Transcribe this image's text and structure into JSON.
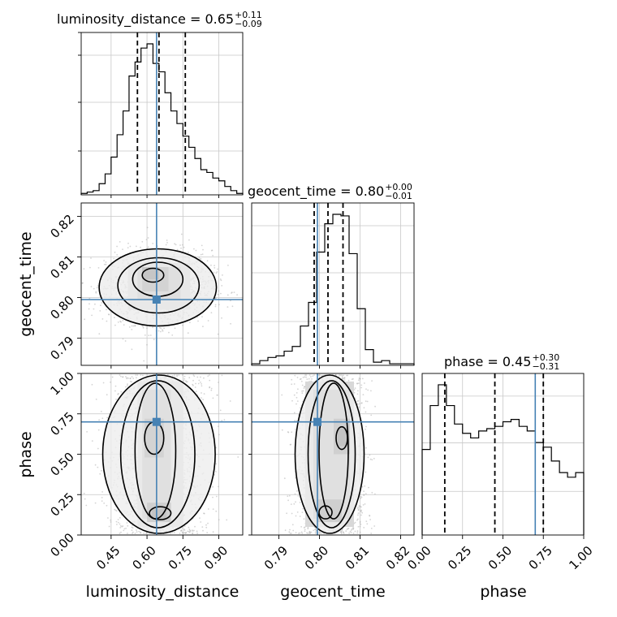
{
  "chart_data": {
    "type": "corner",
    "title": "",
    "parameters": [
      "luminosity_distance",
      "geocent_time",
      "phase"
    ],
    "truths": {
      "luminosity_distance": 0.64,
      "geocent_time": 0.7995,
      "phase": 0.7
    },
    "truth_color": "#4682b4",
    "titles": [
      {
        "param": "luminosity_distance",
        "median": "0.65",
        "plus": "+0.11",
        "minus": "−0.09"
      },
      {
        "param": "geocent_time",
        "median": "0.80",
        "plus": "+0.00",
        "minus": "−0.01"
      },
      {
        "param": "phase",
        "median": "0.45",
        "plus": "+0.30",
        "minus": "−0.31"
      }
    ],
    "axis_ranges": {
      "luminosity_distance": [
        0.325,
        1.0
      ],
      "geocent_time": [
        0.7833,
        0.8233
      ],
      "phase": [
        0.0,
        1.0
      ]
    },
    "ticks": {
      "luminosity_distance": [
        "0.45",
        "0.60",
        "0.75",
        "0.90"
      ],
      "geocent_time": [
        "0.79",
        "0.80",
        "0.81",
        "0.82"
      ],
      "phase": [
        "0.00",
        "0.25",
        "0.50",
        "0.75",
        "1.00"
      ]
    },
    "quantile_lines": {
      "luminosity_distance": [
        0.56,
        0.65,
        0.76
      ],
      "geocent_time": [
        0.7987,
        0.8021,
        0.8058
      ],
      "phase": [
        0.14,
        0.45,
        0.75
      ]
    },
    "histograms": {
      "luminosity_distance": {
        "edges": [
          0.325,
          0.35,
          0.375,
          0.4,
          0.425,
          0.45,
          0.475,
          0.5,
          0.525,
          0.55,
          0.575,
          0.6,
          0.625,
          0.65,
          0.675,
          0.7,
          0.725,
          0.75,
          0.775,
          0.8,
          0.825,
          0.85,
          0.875,
          0.9,
          0.925,
          0.95,
          0.975,
          1.0
        ],
        "counts": [
          1,
          2,
          3,
          8,
          15,
          27,
          43,
          60,
          85,
          95,
          105,
          108,
          94,
          88,
          73,
          60,
          51,
          42,
          34,
          26,
          18,
          16,
          12,
          10,
          6,
          3,
          1
        ]
      },
      "geocent_time": {
        "edges": [
          0.7833,
          0.7853,
          0.7873,
          0.7893,
          0.7913,
          0.7933,
          0.7953,
          0.7973,
          0.7993,
          0.8013,
          0.8033,
          0.8053,
          0.8073,
          0.8093,
          0.8113,
          0.8133,
          0.8153,
          0.8173,
          0.8193,
          0.8213,
          0.8233
        ],
        "counts": [
          1,
          3,
          5,
          6,
          9,
          12,
          25,
          40,
          72,
          90,
          96,
          95,
          71,
          36,
          10,
          2,
          3,
          1,
          1,
          1
        ]
      },
      "phase": {
        "edges": [
          0.0,
          0.05,
          0.1,
          0.15,
          0.2,
          0.25,
          0.3,
          0.35,
          0.4,
          0.45,
          0.5,
          0.55,
          0.6,
          0.65,
          0.7,
          0.75,
          0.8,
          0.85,
          0.9,
          0.95,
          1.0
        ],
        "counts": [
          37,
          56,
          65,
          56,
          48,
          44,
          42,
          45,
          46,
          47,
          49,
          50,
          47,
          45,
          40,
          38,
          32,
          27,
          25,
          27
        ]
      }
    },
    "grid": true
  }
}
